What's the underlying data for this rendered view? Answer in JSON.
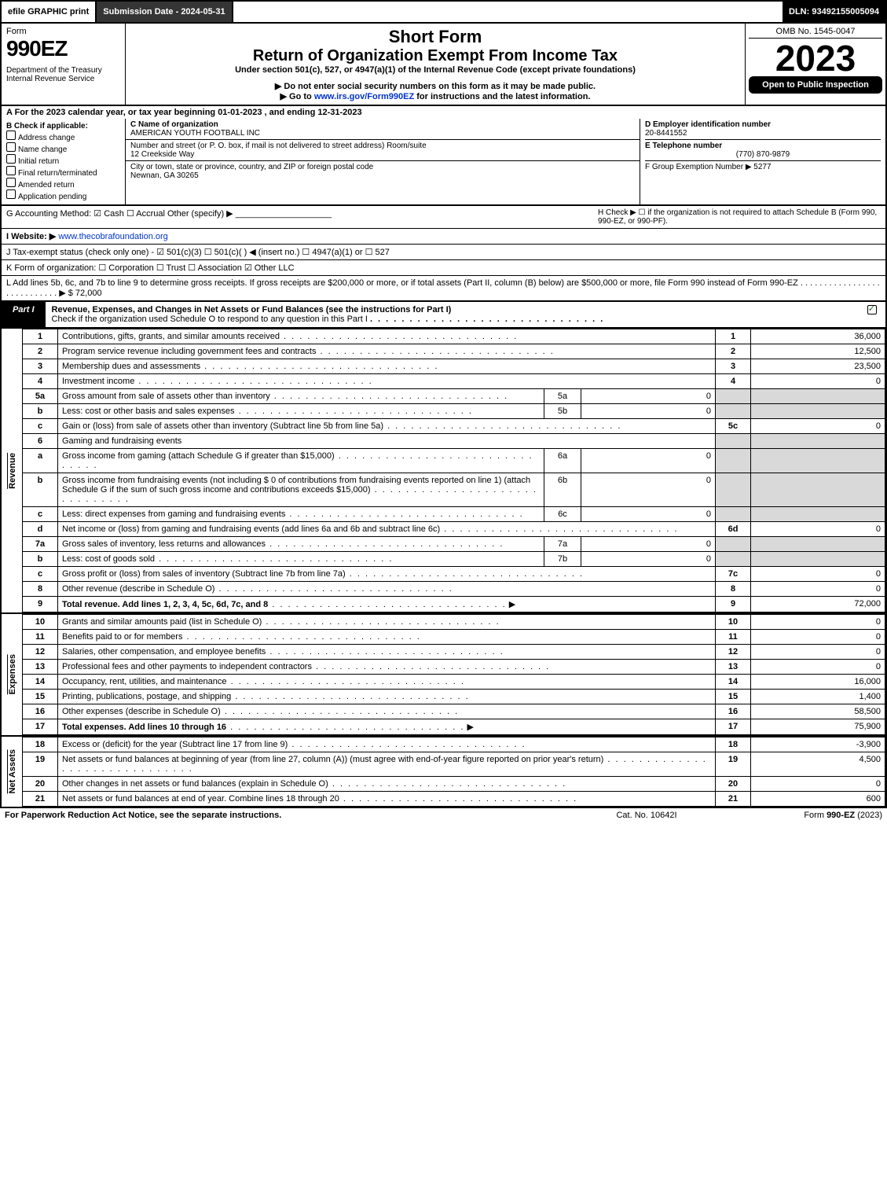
{
  "top": {
    "efile": "efile GRAPHIC print",
    "subdate": "Submission Date - 2024-05-31",
    "dln": "DLN: 93492155005094"
  },
  "header": {
    "form_word": "Form",
    "form_no": "990EZ",
    "dept": "Department of the Treasury",
    "irs": "Internal Revenue Service",
    "short": "Short Form",
    "title": "Return of Organization Exempt From Income Tax",
    "under": "Under section 501(c), 527, or 4947(a)(1) of the Internal Revenue Code (except private foundations)",
    "warn": "▶ Do not enter social security numbers on this form as it may be made public.",
    "goto": "▶ Go to www.irs.gov/Form990EZ for instructions and the latest information.",
    "omb": "OMB No. 1545-0047",
    "year": "2023",
    "open": "Open to Public Inspection"
  },
  "A": "A  For the 2023 calendar year, or tax year beginning 01-01-2023 , and ending 12-31-2023",
  "B": {
    "title": "B  Check if applicable:",
    "items": [
      "Address change",
      "Name change",
      "Initial return",
      "Final return/terminated",
      "Amended return",
      "Application pending"
    ]
  },
  "C": {
    "namelbl": "C Name of organization",
    "name": "AMERICAN YOUTH FOOTBALL INC",
    "addrlbl": "Number and street (or P. O. box, if mail is not delivered to street address)         Room/suite",
    "addr": "12 Creekside Way",
    "citylbl": "City or town, state or province, country, and ZIP or foreign postal code",
    "city": "Newnan, GA  30265"
  },
  "D": {
    "einlbl": "D Employer identification number",
    "ein": "20-8441552",
    "tellbl": "E Telephone number",
    "tel": "(770) 870-9879",
    "grplbl": "F Group Exemption Number   ▶ 5277"
  },
  "G": "G Accounting Method:   ☑ Cash   ☐ Accrual   Other (specify) ▶ ____________________",
  "H": "H    Check ▶  ☐  if the organization is not required to attach Schedule B (Form 990, 990-EZ, or 990-PF).",
  "I": {
    "lbl": "I Website: ▶",
    "url": "www.thecobrafoundation.org"
  },
  "J": "J Tax-exempt status (check only one) - ☑ 501(c)(3)  ☐ 501(c)(   ) ◀ (insert no.)  ☐ 4947(a)(1) or  ☐ 527",
  "K": "K Form of organization:   ☐ Corporation   ☐ Trust   ☐ Association   ☑ Other LLC",
  "L": "L Add lines 5b, 6c, and 7b to line 9 to determine gross receipts. If gross receipts are $200,000 or more, or if total assets (Part II, column (B) below) are $500,000 or more, file Form 990 instead of Form 990-EZ  .  .  .  .  .  .  .  .  .  .  .  .  .  .  .  .  .  .  .  .  .  .  .  .  .  .  .  .  ▶ $ 72,000",
  "part1": {
    "tab": "Part I",
    "title": "Revenue, Expenses, and Changes in Net Assets or Fund Balances (see the instructions for Part I)",
    "check": "Check if the organization used Schedule O to respond to any question in this Part I"
  },
  "side": {
    "rev": "Revenue",
    "exp": "Expenses",
    "net": "Net Assets"
  },
  "rev": [
    {
      "n": "1",
      "d": "Contributions, gifts, grants, and similar amounts received",
      "r": "1",
      "v": "36,000"
    },
    {
      "n": "2",
      "d": "Program service revenue including government fees and contracts",
      "r": "2",
      "v": "12,500"
    },
    {
      "n": "3",
      "d": "Membership dues and assessments",
      "r": "3",
      "v": "23,500"
    },
    {
      "n": "4",
      "d": "Investment income",
      "r": "4",
      "v": "0"
    },
    {
      "n": "5a",
      "d": "Gross amount from sale of assets other than inventory",
      "sc": "5a",
      "sv": "0"
    },
    {
      "n": "b",
      "d": "Less: cost or other basis and sales expenses",
      "sc": "5b",
      "sv": "0"
    },
    {
      "n": "c",
      "d": "Gain or (loss) from sale of assets other than inventory (Subtract line 5b from line 5a)",
      "r": "5c",
      "v": "0"
    },
    {
      "n": "6",
      "d": "Gaming and fundraising events"
    },
    {
      "n": "a",
      "d": "Gross income from gaming (attach Schedule G if greater than $15,000)",
      "sc": "6a",
      "sv": "0"
    },
    {
      "n": "b",
      "d": "Gross income from fundraising events (not including $  0            of contributions from fundraising events reported on line 1) (attach Schedule G if the sum of such gross income and contributions exceeds $15,000)",
      "sc": "6b",
      "sv": "0"
    },
    {
      "n": "c",
      "d": "Less: direct expenses from gaming and fundraising events",
      "sc": "6c",
      "sv": "0"
    },
    {
      "n": "d",
      "d": "Net income or (loss) from gaming and fundraising events (add lines 6a and 6b and subtract line 6c)",
      "r": "6d",
      "v": "0"
    },
    {
      "n": "7a",
      "d": "Gross sales of inventory, less returns and allowances",
      "sc": "7a",
      "sv": "0"
    },
    {
      "n": "b",
      "d": "Less: cost of goods sold",
      "sc": "7b",
      "sv": "0"
    },
    {
      "n": "c",
      "d": "Gross profit or (loss) from sales of inventory (Subtract line 7b from line 7a)",
      "r": "7c",
      "v": "0"
    },
    {
      "n": "8",
      "d": "Other revenue (describe in Schedule O)",
      "r": "8",
      "v": "0"
    },
    {
      "n": "9",
      "d": "Total revenue. Add lines 1, 2, 3, 4, 5c, 6d, 7c, and 8",
      "r": "9",
      "v": "72,000",
      "bold": true,
      "arrow": true
    }
  ],
  "exp": [
    {
      "n": "10",
      "d": "Grants and similar amounts paid (list in Schedule O)",
      "r": "10",
      "v": "0"
    },
    {
      "n": "11",
      "d": "Benefits paid to or for members",
      "r": "11",
      "v": "0"
    },
    {
      "n": "12",
      "d": "Salaries, other compensation, and employee benefits",
      "r": "12",
      "v": "0"
    },
    {
      "n": "13",
      "d": "Professional fees and other payments to independent contractors",
      "r": "13",
      "v": "0"
    },
    {
      "n": "14",
      "d": "Occupancy, rent, utilities, and maintenance",
      "r": "14",
      "v": "16,000"
    },
    {
      "n": "15",
      "d": "Printing, publications, postage, and shipping",
      "r": "15",
      "v": "1,400"
    },
    {
      "n": "16",
      "d": "Other expenses (describe in Schedule O)",
      "r": "16",
      "v": "58,500"
    },
    {
      "n": "17",
      "d": "Total expenses. Add lines 10 through 16",
      "r": "17",
      "v": "75,900",
      "bold": true,
      "arrow": true
    }
  ],
  "net": [
    {
      "n": "18",
      "d": "Excess or (deficit) for the year (Subtract line 17 from line 9)",
      "r": "18",
      "v": "-3,900"
    },
    {
      "n": "19",
      "d": "Net assets or fund balances at beginning of year (from line 27, column (A)) (must agree with end-of-year figure reported on prior year's return)",
      "r": "19",
      "v": "4,500"
    },
    {
      "n": "20",
      "d": "Other changes in net assets or fund balances (explain in Schedule O)",
      "r": "20",
      "v": "0"
    },
    {
      "n": "21",
      "d": "Net assets or fund balances at end of year. Combine lines 18 through 20",
      "r": "21",
      "v": "600"
    }
  ],
  "footer": {
    "l": "For Paperwork Reduction Act Notice, see the separate instructions.",
    "c": "Cat. No. 10642I",
    "r": "Form 990-EZ (2023)"
  }
}
